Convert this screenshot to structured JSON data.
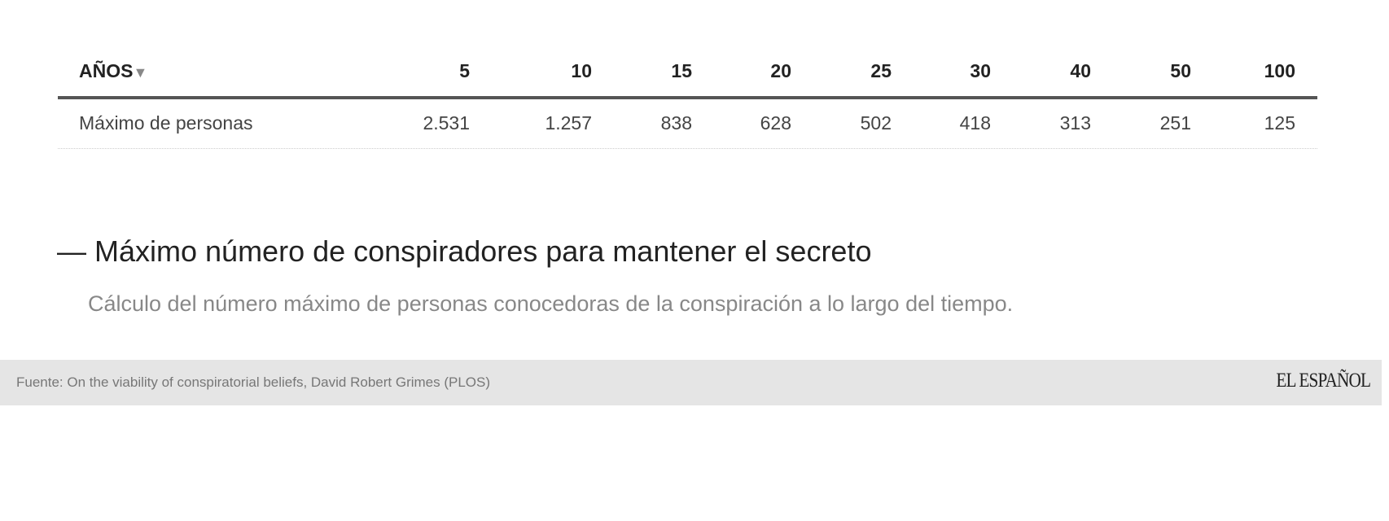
{
  "table": {
    "header_label": "AÑOS",
    "sort_icon": "triangle-down-icon",
    "columns": [
      "5",
      "10",
      "15",
      "20",
      "25",
      "30",
      "40",
      "50",
      "100"
    ],
    "rows": [
      {
        "label": "Máximo de personas",
        "values": [
          "2.531",
          "1.257",
          "838",
          "628",
          "502",
          "418",
          "313",
          "251",
          "125"
        ]
      }
    ]
  },
  "title": "— Máximo número de conspiradores para mantener el secreto",
  "subtitle": "Cálculo del número máximo de personas conocedoras de la conspiración a lo largo del tiempo.",
  "footer": {
    "source": "Fuente: On the viability of conspiratorial beliefs, David Robert Grimes (PLOS)",
    "logo": "EL ESPAÑOL"
  }
}
